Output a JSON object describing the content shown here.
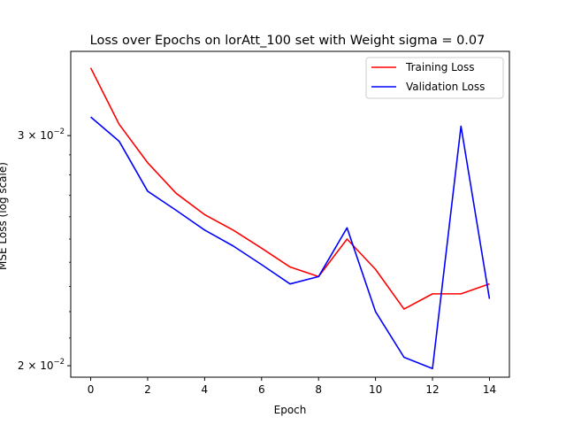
{
  "chart_data": {
    "type": "line",
    "title": "Loss over Epochs on lorAtt_100 set with Weight sigma = 0.07",
    "xlabel": "Epoch",
    "ylabel": "MSE Loss (log scale)",
    "yscale": "log",
    "xlim": [
      -0.7,
      14.7
    ],
    "ylim": [
      0.0196,
      0.0348
    ],
    "xticks": [
      0,
      2,
      4,
      6,
      8,
      10,
      12,
      14
    ],
    "xtick_labels": [
      "0",
      "2",
      "4",
      "6",
      "8",
      "10",
      "12",
      "14"
    ],
    "yticks": [
      {
        "value": 0.02,
        "mantissa": "2",
        "base": "10",
        "exp": "−2"
      },
      {
        "value": 0.03,
        "mantissa": "3",
        "base": "10",
        "exp": "−2"
      }
    ],
    "grid": false,
    "legend_position": "top-right",
    "series": [
      {
        "name": "Training Loss",
        "color": "#ff0000",
        "x": [
          0,
          1,
          2,
          3,
          4,
          5,
          6,
          7,
          8,
          9,
          10,
          11,
          12,
          13,
          14
        ],
        "y": [
          0.0338,
          0.0306,
          0.0286,
          0.0271,
          0.0261,
          0.0254,
          0.0246,
          0.0238,
          0.0234,
          0.025,
          0.0237,
          0.0221,
          0.0227,
          0.0227,
          0.0231
        ]
      },
      {
        "name": "Validation Loss",
        "color": "#0000ff",
        "x": [
          0,
          1,
          2,
          3,
          4,
          5,
          6,
          7,
          8,
          9,
          10,
          11,
          12,
          13,
          14
        ],
        "y": [
          0.031,
          0.0297,
          0.0272,
          0.0263,
          0.0254,
          0.0247,
          0.0239,
          0.0231,
          0.0234,
          0.0255,
          0.022,
          0.0203,
          0.0199,
          0.0305,
          0.0225
        ]
      }
    ]
  }
}
